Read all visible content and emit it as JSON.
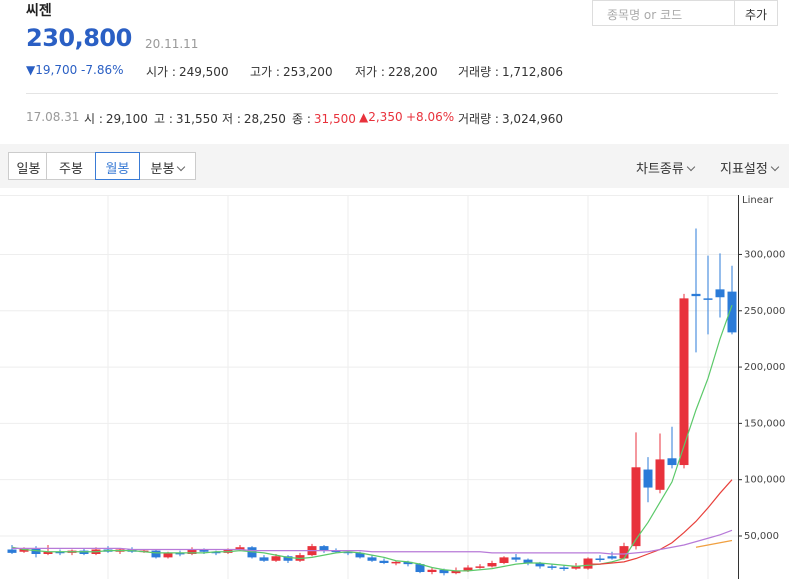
{
  "header": {
    "name": "씨젠",
    "price": "230,800",
    "date": "20.11.11",
    "change": "▼19,700",
    "change_rate": "-7.86%",
    "stats": [
      {
        "label": "시가 :",
        "value": "249,500"
      },
      {
        "label": "고가 :",
        "value": "253,200"
      },
      {
        "label": "저가 :",
        "value": "228,200"
      },
      {
        "label": "거래량 :",
        "value": "1,712,806"
      }
    ]
  },
  "search": {
    "placeholder": "종목명 or 코드",
    "button": "추가"
  },
  "hover": {
    "date": "17.08.31",
    "items": [
      {
        "label": "시 :",
        "value": "29,100"
      },
      {
        "label": "고 :",
        "value": "31,550"
      },
      {
        "label": "저 :",
        "value": "28,250"
      },
      {
        "label": "종 :",
        "value": "31,500"
      }
    ],
    "change": "▲2,350",
    "change_rate": "+8.06%",
    "volume_label": "거래량 :",
    "volume": "3,024,960"
  },
  "toolbar": {
    "periods": [
      "일봉",
      "주봉",
      "월봉",
      "분봉"
    ],
    "selected": "월봉",
    "menus": [
      "차트종류",
      "지표설정"
    ]
  },
  "chart_data": {
    "type": "candlestick",
    "scale_label": "Linear",
    "up_color": "#e8323c",
    "down_color": "#2b7bd8",
    "ylim": [
      11800,
      352800
    ],
    "yticks": [
      {
        "value": 50000,
        "label": "50,000"
      },
      {
        "value": 100000,
        "label": "100,000"
      },
      {
        "value": 150000,
        "label": "150,000"
      },
      {
        "value": 200000,
        "label": "200,000"
      },
      {
        "value": 250000,
        "label": "250,000"
      },
      {
        "value": 300000,
        "label": "300,000"
      }
    ],
    "grid": true,
    "open": [
      38000,
      36000,
      39000,
      34000,
      36000,
      35000,
      37000,
      34000,
      38000,
      36000,
      38000,
      36000,
      37000,
      31000,
      35000,
      34000,
      38000,
      36000,
      35000,
      38000,
      40000,
      31000,
      28000,
      32000,
      28000,
      33000,
      41000,
      37000,
      36000,
      35000,
      31000,
      28000,
      26000,
      27000,
      25000,
      18000,
      20000,
      17000,
      19000,
      22000,
      23000,
      26000,
      31000,
      29000,
      26000,
      23000,
      22000,
      21000,
      21000,
      30000,
      32000,
      30000,
      41000,
      109000,
      91000,
      119000,
      113000,
      265000,
      261000,
      269000,
      267000
    ],
    "high": [
      42000,
      40000,
      41000,
      42000,
      38000,
      38000,
      39000,
      40000,
      41000,
      39000,
      40000,
      38000,
      38000,
      36000,
      37000,
      40000,
      39000,
      37000,
      39000,
      42000,
      41000,
      33000,
      34000,
      33000,
      35000,
      43000,
      42000,
      39000,
      37000,
      36000,
      33000,
      30000,
      28000,
      28000,
      26000,
      22000,
      21000,
      22000,
      24000,
      25000,
      28000,
      32000,
      34000,
      30000,
      27000,
      25000,
      24000,
      26000,
      31000,
      33000,
      36000,
      44000,
      142000,
      120000,
      141000,
      147000,
      265000,
      323000,
      299000,
      301000,
      290000
    ],
    "low": [
      34000,
      35000,
      31000,
      33000,
      33000,
      33000,
      33000,
      33000,
      35000,
      34000,
      35000,
      35000,
      30000,
      30000,
      32000,
      33000,
      34000,
      33000,
      34000,
      37000,
      30000,
      27000,
      27000,
      26000,
      27000,
      32000,
      35000,
      35000,
      33000,
      30000,
      27000,
      25000,
      24000,
      23000,
      17000,
      16000,
      15000,
      16000,
      18000,
      21000,
      22000,
      25000,
      27000,
      24000,
      21000,
      20000,
      19000,
      20000,
      20000,
      27000,
      29000,
      29000,
      38000,
      80000,
      88000,
      110000,
      110000,
      213000,
      229000,
      244000,
      229000
    ],
    "close": [
      35000,
      39000,
      34000,
      36000,
      35000,
      37000,
      34000,
      38000,
      36000,
      38000,
      36000,
      37000,
      31000,
      35000,
      34000,
      38000,
      36000,
      35000,
      38000,
      40000,
      31000,
      28000,
      32000,
      28000,
      33000,
      41000,
      37000,
      36000,
      35000,
      31000,
      28000,
      26000,
      27000,
      25000,
      18000,
      20000,
      17000,
      19000,
      22000,
      23000,
      26000,
      31000,
      29000,
      26000,
      23000,
      22000,
      21000,
      23000,
      30000,
      29000,
      30000,
      41000,
      111000,
      93000,
      118000,
      113000,
      261000,
      263000,
      260000,
      262000,
      230800
    ],
    "series": [
      {
        "color": "#5cc96a",
        "values": [
          40000,
          38000,
          37000,
          36000,
          36000,
          36000,
          36000,
          36000,
          37000,
          37000,
          37000,
          36000,
          35000,
          35000,
          35000,
          35000,
          35000,
          36000,
          36000,
          37000,
          36000,
          35000,
          33000,
          31000,
          30000,
          31000,
          33000,
          35000,
          36000,
          35000,
          33000,
          31000,
          28000,
          27000,
          25000,
          22000,
          20000,
          19000,
          19000,
          20000,
          21000,
          23000,
          25000,
          26000,
          26000,
          25000,
          24000,
          23000,
          24000,
          25000,
          27000,
          30000,
          47000,
          62000,
          80000,
          98000,
          130000,
          162000,
          190000,
          225000,
          255000
        ]
      },
      {
        "color": "#e8413c",
        "values": [
          null,
          null,
          null,
          null,
          null,
          null,
          null,
          null,
          null,
          null,
          null,
          null,
          null,
          null,
          null,
          null,
          null,
          null,
          null,
          null,
          null,
          null,
          null,
          null,
          null,
          null,
          null,
          null,
          null,
          null,
          null,
          null,
          null,
          null,
          null,
          null,
          null,
          null,
          null,
          null,
          null,
          null,
          null,
          null,
          null,
          null,
          null,
          null,
          25000,
          25000,
          26000,
          27000,
          30000,
          34000,
          38000,
          44000,
          53000,
          63000,
          75000,
          88000,
          100000
        ]
      },
      {
        "color": "#b77ad8",
        "values": [
          39000,
          39000,
          39000,
          39000,
          39000,
          39000,
          39000,
          39000,
          39000,
          39000,
          38000,
          38000,
          38000,
          38000,
          38000,
          38000,
          38000,
          38000,
          38000,
          38000,
          37000,
          37000,
          37000,
          37000,
          37000,
          37000,
          37000,
          37000,
          37000,
          37000,
          36000,
          36000,
          36000,
          36000,
          36000,
          36000,
          36000,
          36000,
          36000,
          36000,
          35000,
          35000,
          35000,
          35000,
          35000,
          35000,
          35000,
          35000,
          35000,
          35000,
          34000,
          34000,
          35000,
          36000,
          38000,
          40000,
          42000,
          45000,
          48000,
          51000,
          55000
        ]
      },
      {
        "color": "#f0a040",
        "values": [
          null,
          null,
          null,
          null,
          null,
          null,
          null,
          null,
          null,
          null,
          null,
          null,
          null,
          null,
          null,
          null,
          null,
          null,
          null,
          null,
          null,
          null,
          null,
          null,
          null,
          null,
          null,
          null,
          null,
          null,
          null,
          null,
          null,
          null,
          null,
          null,
          null,
          null,
          null,
          null,
          null,
          null,
          null,
          null,
          null,
          null,
          null,
          null,
          null,
          null,
          null,
          null,
          null,
          null,
          null,
          null,
          null,
          40000,
          42000,
          44000,
          46000
        ]
      }
    ]
  }
}
